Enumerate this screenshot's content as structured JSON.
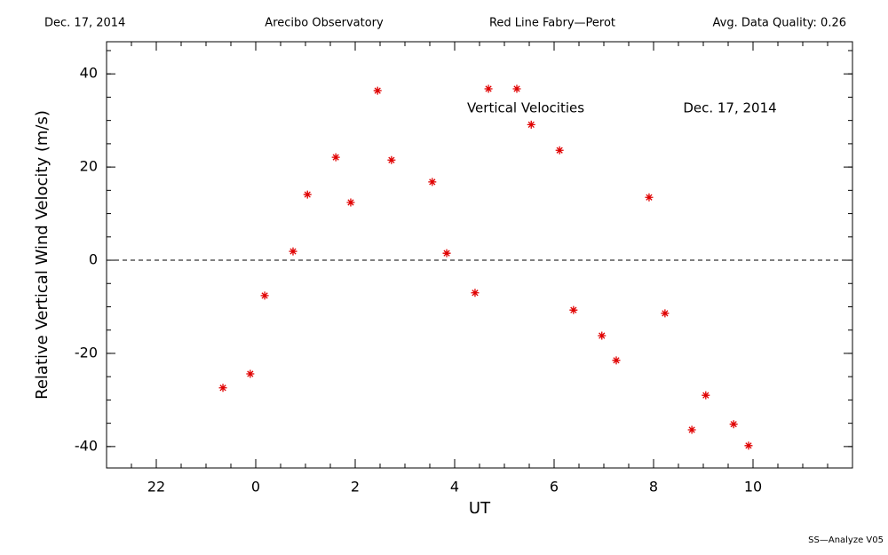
{
  "header": {
    "date": "Dec. 17, 2014",
    "site": "Arecibo Observatory",
    "instrument": "Red Line Fabry—Perot",
    "quality": "Avg. Data Quality: 0.26"
  },
  "footer": "SS—Analyze V05",
  "chart_data": {
    "type": "scatter",
    "x_label": "UT",
    "y_label": "Relative Vertical Wind Velocity (m/s)",
    "annotations": [
      "Vertical Velocities",
      "Dec. 17, 2014"
    ],
    "color": "#e00000",
    "reference_line": 0,
    "xlim": [
      -3,
      12
    ],
    "ylim": [
      -44.6,
      46.9
    ],
    "xticks": [
      {
        "value": -2,
        "label": "22"
      },
      0,
      2,
      4,
      6,
      8,
      10
    ],
    "yticks": [
      -40,
      -20,
      0,
      20,
      40
    ],
    "x": [
      -0.66,
      -0.11,
      0.18,
      0.75,
      1.04,
      1.61,
      1.91,
      2.45,
      2.73,
      3.55,
      3.84,
      4.41,
      4.68,
      5.25,
      5.54,
      6.11,
      6.39,
      6.96,
      7.25,
      7.91,
      8.23,
      8.77,
      9.05,
      9.61,
      9.91
    ],
    "values": [
      -27.4,
      -24.4,
      -7.6,
      1.9,
      14.1,
      22.1,
      12.4,
      36.4,
      21.5,
      16.8,
      1.5,
      -7.0,
      36.8,
      36.8,
      29.1,
      23.6,
      -10.7,
      -16.2,
      -21.5,
      13.5,
      -11.4,
      -36.4,
      -29.0,
      -35.2,
      -39.8
    ]
  }
}
